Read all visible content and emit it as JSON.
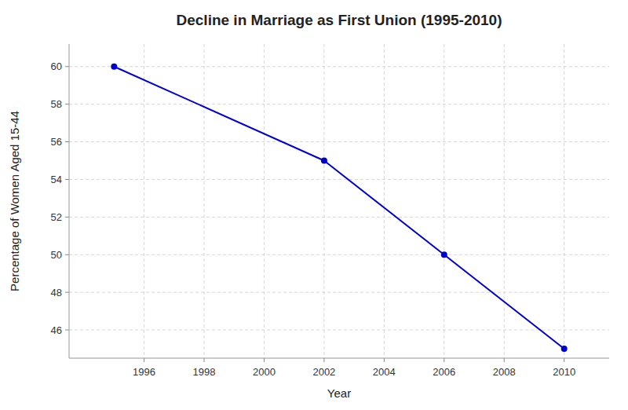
{
  "chart_data": {
    "type": "line",
    "title": "Decline in Marriage as First Union (1995-2010)",
    "xlabel": "Year",
    "ylabel": "Percentage of Women Aged 15-44",
    "x": [
      1995,
      2002,
      2006,
      2010
    ],
    "values": [
      60,
      55,
      50,
      45
    ],
    "color": "#0000cc",
    "marker": "circle",
    "xlim": [
      1993.5,
      2011.5
    ],
    "ylim": [
      44.5,
      61.2
    ],
    "xticks": [
      1996,
      1998,
      2000,
      2002,
      2004,
      2006,
      2008,
      2010
    ],
    "yticks": [
      46,
      48,
      50,
      52,
      54,
      56,
      58,
      60
    ],
    "grid": true
  }
}
